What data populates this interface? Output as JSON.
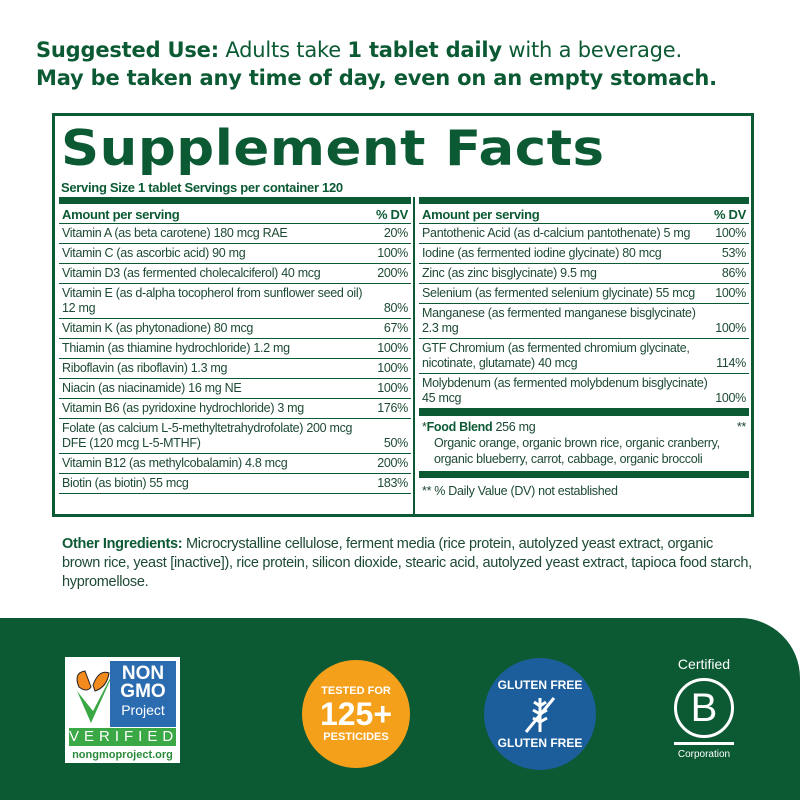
{
  "suggested_use": {
    "label": "Suggested Use:",
    "text1": " Adults take ",
    "bold1": "1 tablet daily",
    "text2": " with a beverage.",
    "line2": "May be taken any time of day, even on an empty stomach."
  },
  "panel": {
    "title": "Supplement Facts",
    "serving": "Serving Size 1 tablet  Servings per container 120",
    "header": {
      "amount": "Amount per serving",
      "dv": "% DV"
    },
    "left_rows": [
      {
        "name": "Vitamin A (as beta carotene) 180 mcg RAE",
        "dv": "20%"
      },
      {
        "name": "Vitamin C (as ascorbic acid) 90 mg",
        "dv": "100%"
      },
      {
        "name": "Vitamin D3 (as fermented cholecalciferol) 40 mcg",
        "dv": "200%"
      },
      {
        "name": "Vitamin E (as d-alpha tocopherol from sunflower seed oil) 12 mg",
        "dv": "80%"
      },
      {
        "name": "Vitamin K (as phytonadione) 80 mcg",
        "dv": "67%"
      },
      {
        "name": "Thiamin (as thiamine hydrochloride) 1.2 mg",
        "dv": "100%"
      },
      {
        "name": "Riboflavin (as riboflavin) 1.3 mg",
        "dv": "100%"
      },
      {
        "name": "Niacin (as niacinamide) 16 mg NE",
        "dv": "100%"
      },
      {
        "name": "Vitamin B6 (as pyridoxine hydrochloride) 3 mg",
        "dv": "176%"
      },
      {
        "name": "Folate (as calcium L-5-methyltetrahydrofolate) 200 mcg DFE (120 mcg L-5-MTHF)",
        "dv": "50%"
      },
      {
        "name": "Vitamin B12 (as methylcobalamin) 4.8 mcg",
        "dv": "200%"
      },
      {
        "name": "Biotin (as biotin) 55 mcg",
        "dv": "183%"
      }
    ],
    "right_rows": [
      {
        "name": "Pantothenic Acid (as d-calcium pantothenate) 5 mg",
        "dv": "100%"
      },
      {
        "name": "Iodine (as fermented iodine glycinate) 80 mcg",
        "dv": "53%"
      },
      {
        "name": "Zinc (as zinc bisglycinate) 9.5 mg",
        "dv": "86%"
      },
      {
        "name": "Selenium (as fermented selenium glycinate) 55 mcg",
        "dv": "100%"
      },
      {
        "name": "Manganese (as fermented manganese bisglycinate) 2.3 mg",
        "dv": "100%"
      },
      {
        "name": "GTF Chromium (as fermented chromium glycinate, nicotinate, glutamate) 40 mcg",
        "dv": "114%"
      },
      {
        "name": "Molybdenum (as fermented molybdenum bisglycinate) 45 mcg",
        "dv": "100%"
      }
    ],
    "food_blend": {
      "marker": "*",
      "name": "Food Blend",
      "amount": " 256 mg",
      "dv": "**",
      "desc": "Organic orange, organic brown rice, organic cranberry, organic blueberry, carrot, cabbage, organic broccoli"
    },
    "footnote": "** % Daily Value (DV) not established"
  },
  "other": {
    "label": "Other Ingredients:",
    "text": " Microcrystalline cellulose, ferment media (rice protein, autolyzed yeast extract, organic brown rice, yeast [inactive]), rice protein, silicon dioxide, stearic acid, autolyzed yeast extract, tapioca food starch, hypromellose."
  },
  "badges": {
    "nongmo": {
      "l1": "NON",
      "l2": "GMO",
      "l3": "Project",
      "verified": "VERIFIED",
      "url": "nongmoproject.org"
    },
    "tested": {
      "top": "TESTED FOR",
      "num": "125+",
      "bottom": "PESTICIDES"
    },
    "gluten": {
      "top": "GLUTEN FREE",
      "bottom": "GLUTEN FREE"
    },
    "bcorp": {
      "top": "Certified",
      "letter": "B",
      "bottom": "Corporation"
    }
  },
  "colors": {
    "brand_green": "#0b5a33",
    "orange": "#f5a01a",
    "blue": "#1c5e9c"
  }
}
